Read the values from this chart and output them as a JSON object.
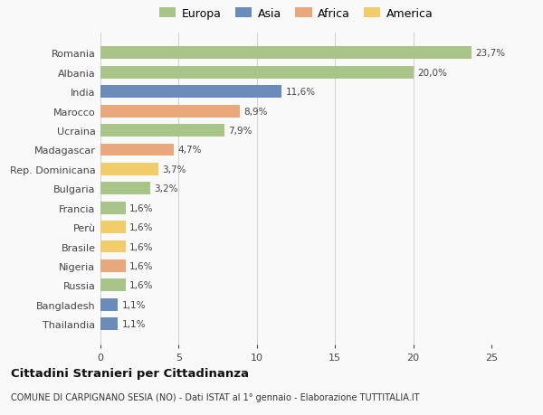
{
  "categories": [
    "Romania",
    "Albania",
    "India",
    "Marocco",
    "Ucraina",
    "Madagascar",
    "Rep. Dominicana",
    "Bulgaria",
    "Francia",
    "Perù",
    "Brasile",
    "Nigeria",
    "Russia",
    "Bangladesh",
    "Thailandia"
  ],
  "values": [
    23.7,
    20.0,
    11.6,
    8.9,
    7.9,
    4.7,
    3.7,
    3.2,
    1.6,
    1.6,
    1.6,
    1.6,
    1.6,
    1.1,
    1.1
  ],
  "labels": [
    "23,7%",
    "20,0%",
    "11,6%",
    "8,9%",
    "7,9%",
    "4,7%",
    "3,7%",
    "3,2%",
    "1,6%",
    "1,6%",
    "1,6%",
    "1,6%",
    "1,6%",
    "1,1%",
    "1,1%"
  ],
  "colors": [
    "#a8c488",
    "#a8c488",
    "#6b8cba",
    "#e8a87c",
    "#a8c488",
    "#e8a87c",
    "#f0cc6a",
    "#a8c488",
    "#a8c488",
    "#f0cc6a",
    "#f0cc6a",
    "#e8a87c",
    "#a8c488",
    "#6b8cba",
    "#6b8cba"
  ],
  "legend_labels": [
    "Europa",
    "Asia",
    "Africa",
    "America"
  ],
  "legend_colors": [
    "#a8c488",
    "#6b8cba",
    "#e8a87c",
    "#f0cc6a"
  ],
  "title": "Cittadini Stranieri per Cittadinanza",
  "subtitle": "COMUNE DI CARPIGNANO SESIA (NO) - Dati ISTAT al 1° gennaio - Elaborazione TUTTITALIA.IT",
  "xlim": [
    0,
    25
  ],
  "xticks": [
    0,
    5,
    10,
    15,
    20,
    25
  ],
  "background_color": "#f9f9f9",
  "grid_color": "#d0d0d0"
}
